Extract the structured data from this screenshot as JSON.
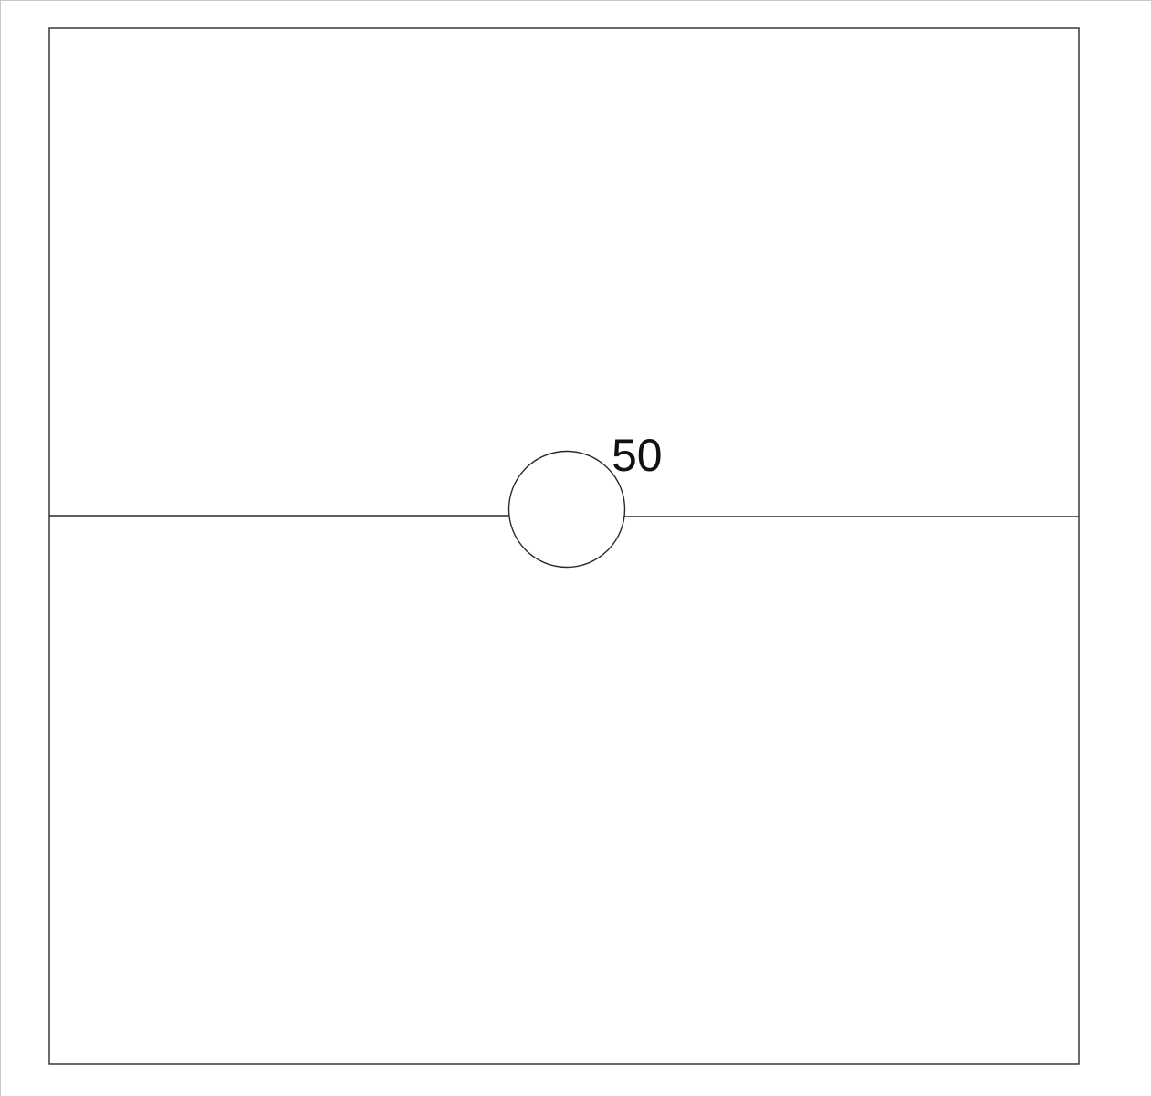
{
  "diagram": {
    "node_label": "50"
  },
  "colors": {
    "line": "#2a2a2a",
    "text": "#111111",
    "background": "#ffffff"
  }
}
